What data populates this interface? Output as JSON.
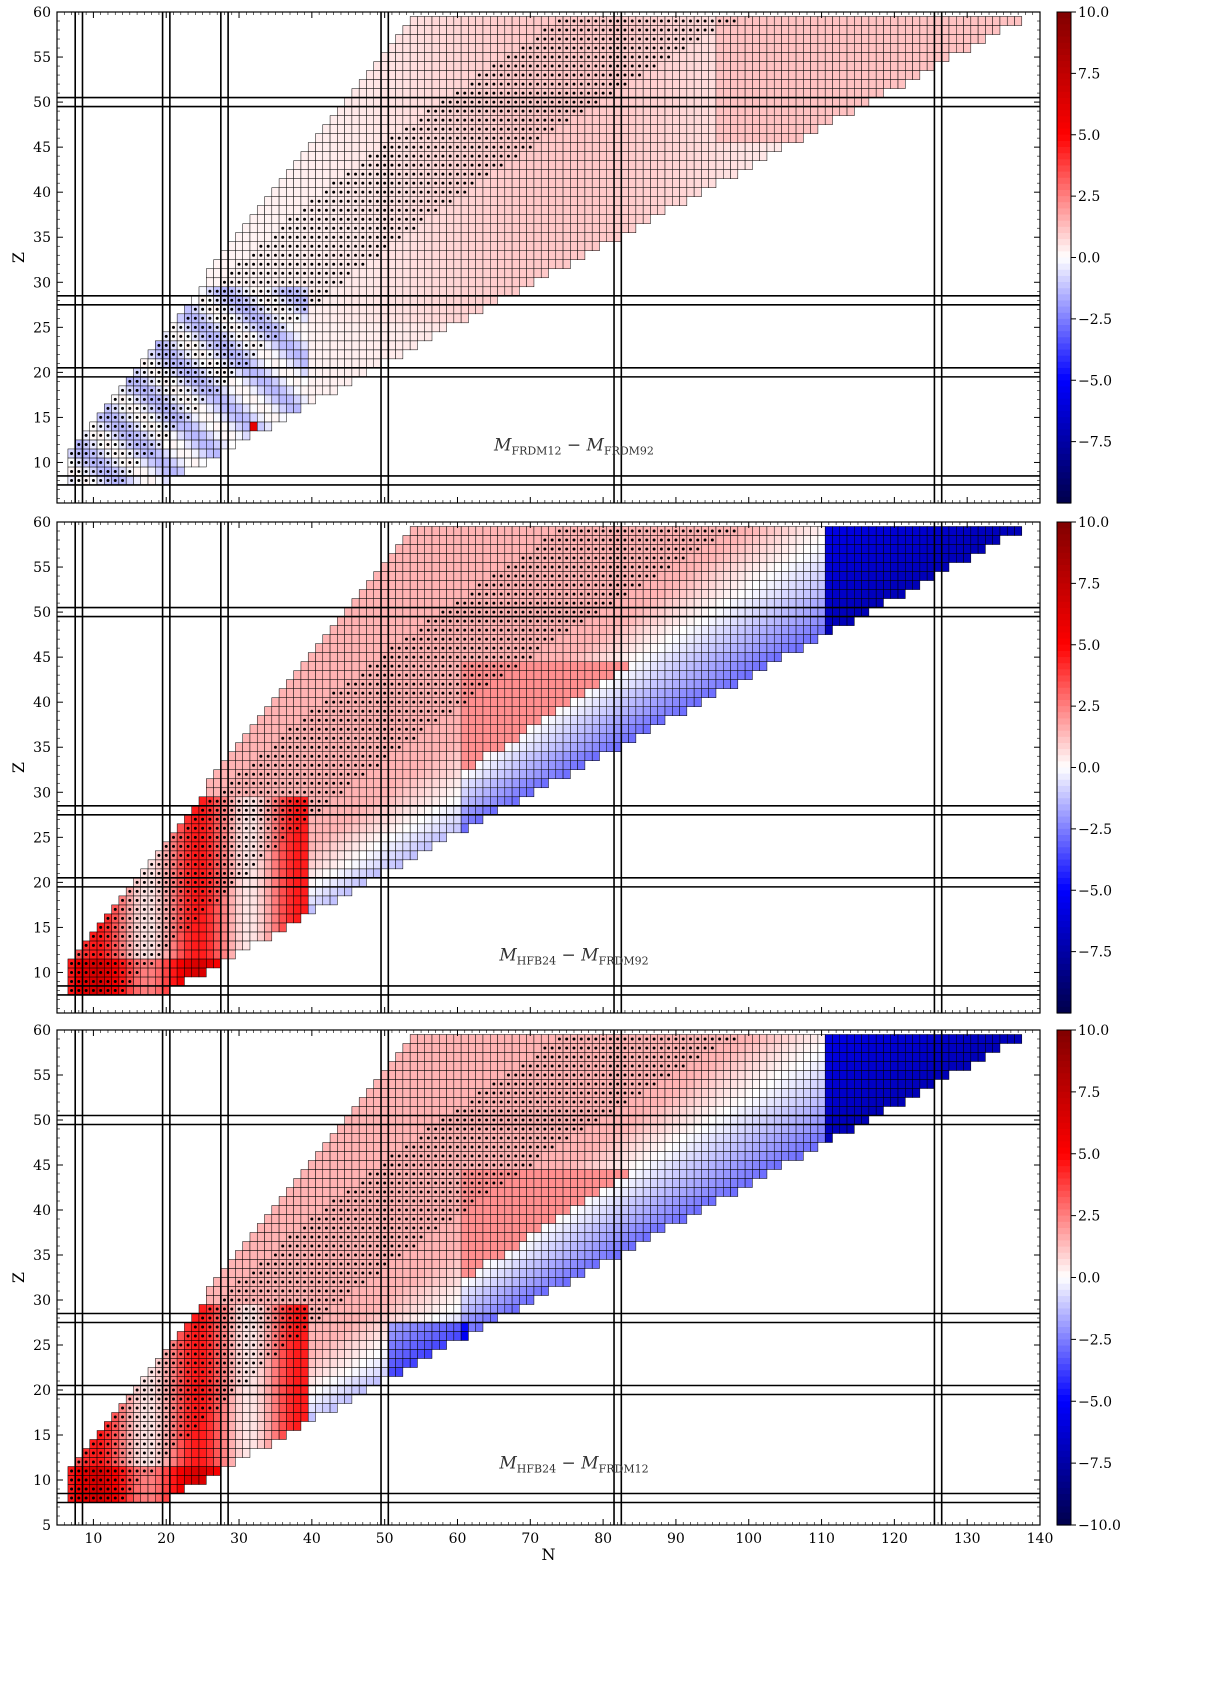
{
  "chart_data": [
    {
      "type": "heatmap",
      "annotation": "M_FRDM12 − M_FRDM92",
      "annotation_main": "M",
      "annotation_sub1": "FRDM12",
      "annotation_sub2": "FRDM92",
      "xlabel": "",
      "ylabel": "Z",
      "xlim": [
        5,
        140
      ],
      "ylim": [
        5,
        60
      ],
      "x_ticks": [
        10,
        20,
        30,
        40,
        50,
        60,
        70,
        80,
        90,
        100,
        110,
        120,
        130,
        140
      ],
      "y_ticks": [
        "10",
        "15",
        "20",
        "25",
        "30",
        "35",
        "40",
        "45",
        "50",
        "55",
        "60"
      ],
      "colorbar_ticks": [
        "10.0",
        "7.5",
        "5.0",
        "2.5",
        "0.0",
        "−2.5",
        "−5.0",
        "−7.5"
      ],
      "colorbar_range": [
        -10,
        10
      ],
      "colormap": "seismic",
      "magic_numbers": [
        8,
        20,
        28,
        50,
        82,
        126
      ],
      "value_field": {
        "default": 0.3,
        "neutron_rich_trend": 0.6,
        "notes": "mostly small differences, light red in middle region"
      }
    },
    {
      "type": "heatmap",
      "annotation": "M_HFB24 − M_FRDM92",
      "annotation_main": "M",
      "annotation_sub1": "HFB24",
      "annotation_sub2": "FRDM92",
      "xlabel": "",
      "ylabel": "Z",
      "xlim": [
        5,
        140
      ],
      "ylim": [
        5,
        60
      ],
      "x_ticks": [
        10,
        20,
        30,
        40,
        50,
        60,
        70,
        80,
        90,
        100,
        110,
        120,
        130,
        140
      ],
      "y_ticks": [
        "10",
        "15",
        "20",
        "25",
        "30",
        "35",
        "40",
        "45",
        "50",
        "55",
        "60"
      ],
      "colorbar_ticks": [
        "10.0",
        "7.5",
        "5.0",
        "2.5",
        "0.0",
        "−2.5",
        "−5.0",
        "−7.5"
      ],
      "colorbar_range": [
        -10,
        10
      ],
      "colormap": "seismic",
      "magic_numbers": [
        8,
        20,
        28,
        50,
        82,
        126
      ],
      "value_field": {
        "notes": "neutron-rich edge strongly negative (blue), light nuclei positive (red)"
      }
    },
    {
      "type": "heatmap",
      "annotation": "M_HFB24 − M_FRDM12",
      "annotation_main": "M",
      "annotation_sub1": "HFB24",
      "annotation_sub2": "FRDM12",
      "xlabel": "N",
      "ylabel": "Z",
      "xlim": [
        5,
        140
      ],
      "ylim": [
        5,
        60
      ],
      "x_ticks": [
        "10",
        "20",
        "30",
        "40",
        "50",
        "60",
        "70",
        "80",
        "90",
        "100",
        "110",
        "120",
        "130",
        "140"
      ],
      "y_ticks": [
        "5",
        "10",
        "15",
        "20",
        "25",
        "30",
        "35",
        "40",
        "45",
        "50",
        "55",
        "60"
      ],
      "colorbar_ticks": [
        "10.0",
        "7.5",
        "5.0",
        "2.5",
        "0.0",
        "−2.5",
        "−5.0",
        "−7.5",
        "−10.0"
      ],
      "colorbar_range": [
        -10,
        10
      ],
      "colormap": "seismic",
      "magic_numbers": [
        8,
        20,
        28,
        50,
        82,
        126
      ],
      "value_field": {
        "notes": "similar to HFB24 − FRDM92 with slightly stronger blue band near N=50-60"
      }
    }
  ],
  "colors": {
    "deep_red": "#800000",
    "red": "#ff0000",
    "white": "#ffffff",
    "blue": "#0000ff",
    "deep_blue": "#00004c",
    "grid_line": "#000000"
  }
}
